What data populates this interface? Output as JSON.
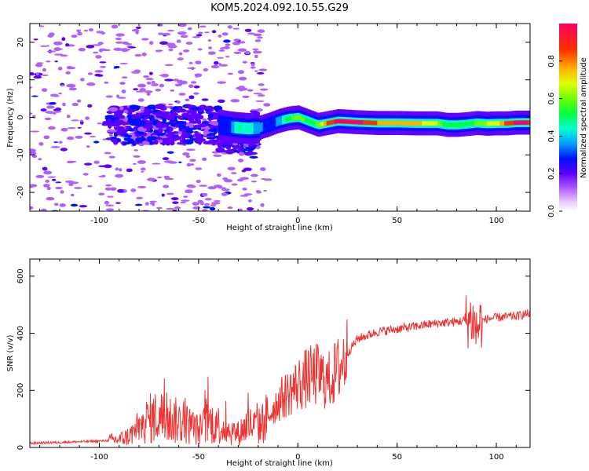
{
  "title": "KOM5.2024.092.10.55.G29",
  "chart_data": [
    {
      "type": "heatmap",
      "xlabel": "Height of straight line (km)",
      "ylabel": "Frequency (Hz)",
      "xlim": [
        -135,
        117
      ],
      "ylim": [
        -25,
        25
      ],
      "xticks": [
        -100,
        -50,
        0,
        50,
        100
      ],
      "xtick_labels": [
        "-100",
        "-50",
        "0",
        "50",
        "100"
      ],
      "yticks": [
        -20,
        -10,
        0,
        10,
        20
      ],
      "ytick_labels": [
        "-20",
        "-10",
        "0",
        "10",
        "20"
      ],
      "colorbar": {
        "label": "Normalized spectral amplitude",
        "range": [
          0,
          1
        ],
        "ticks": [
          0.0,
          0.2,
          0.4,
          0.6,
          0.8
        ],
        "tick_labels": [
          "0.0",
          "0.2",
          "0.4",
          "0.6",
          "0.8"
        ]
      },
      "ridge": {
        "x": [
          -40,
          -35,
          -30,
          -25,
          -20,
          -15,
          -10,
          -5,
          0,
          5,
          10,
          15,
          20,
          30,
          40,
          50,
          60,
          70,
          75,
          80,
          85,
          90,
          95,
          100,
          105,
          110,
          117
        ],
        "freq": [
          -2,
          -2.5,
          -2.8,
          -3,
          -2.8,
          -2,
          -1,
          -0.3,
          0,
          -1,
          -2,
          -1.5,
          -1,
          -1.3,
          -1.5,
          -1.5,
          -1.6,
          -1.6,
          -2,
          -2,
          -1.8,
          -1.5,
          -1.7,
          -1.6,
          -1.6,
          -1.4,
          -1.4
        ],
        "amplitude": [
          0.25,
          0.25,
          0.45,
          0.4,
          0.3,
          0.25,
          0.3,
          0.5,
          0.6,
          0.45,
          0.55,
          0.8,
          0.9,
          0.9,
          0.75,
          0.75,
          0.7,
          0.6,
          0.45,
          0.5,
          0.45,
          0.55,
          0.6,
          0.65,
          0.8,
          0.9,
          0.85
        ]
      }
    },
    {
      "type": "line",
      "xlabel": "Height of straight line (km)",
      "ylabel": "SNR (v/v)",
      "xlim": [
        -135,
        117
      ],
      "ylim": [
        0,
        660
      ],
      "xticks": [
        -100,
        -50,
        0,
        50,
        100
      ],
      "xtick_labels": [
        "-100",
        "-50",
        "0",
        "50",
        "100"
      ],
      "yticks": [
        0,
        200,
        400,
        600
      ],
      "ytick_labels": [
        "0",
        "200",
        "400",
        "600"
      ],
      "series": [
        {
          "color": "#ee3333",
          "x": [
            -135,
            -120,
            -110,
            -100,
            -95,
            -90,
            -85,
            -80,
            -75,
            -70,
            -65,
            -60,
            -55,
            -50,
            -45,
            -40,
            -35,
            -30,
            -25,
            -20,
            -15,
            -10,
            -5,
            0,
            5,
            10,
            15,
            20,
            25,
            30,
            40,
            50,
            60,
            70,
            80,
            85,
            88,
            90,
            92,
            95,
            100,
            110,
            117
          ],
          "y": [
            15,
            18,
            20,
            22,
            25,
            28,
            40,
            70,
            100,
            110,
            100,
            90,
            80,
            60,
            90,
            80,
            60,
            50,
            80,
            70,
            110,
            160,
            190,
            220,
            245,
            255,
            230,
            270,
            330,
            380,
            405,
            415,
            425,
            435,
            440,
            445,
            450,
            410,
            440,
            450,
            455,
            460,
            470
          ]
        }
      ]
    }
  ]
}
